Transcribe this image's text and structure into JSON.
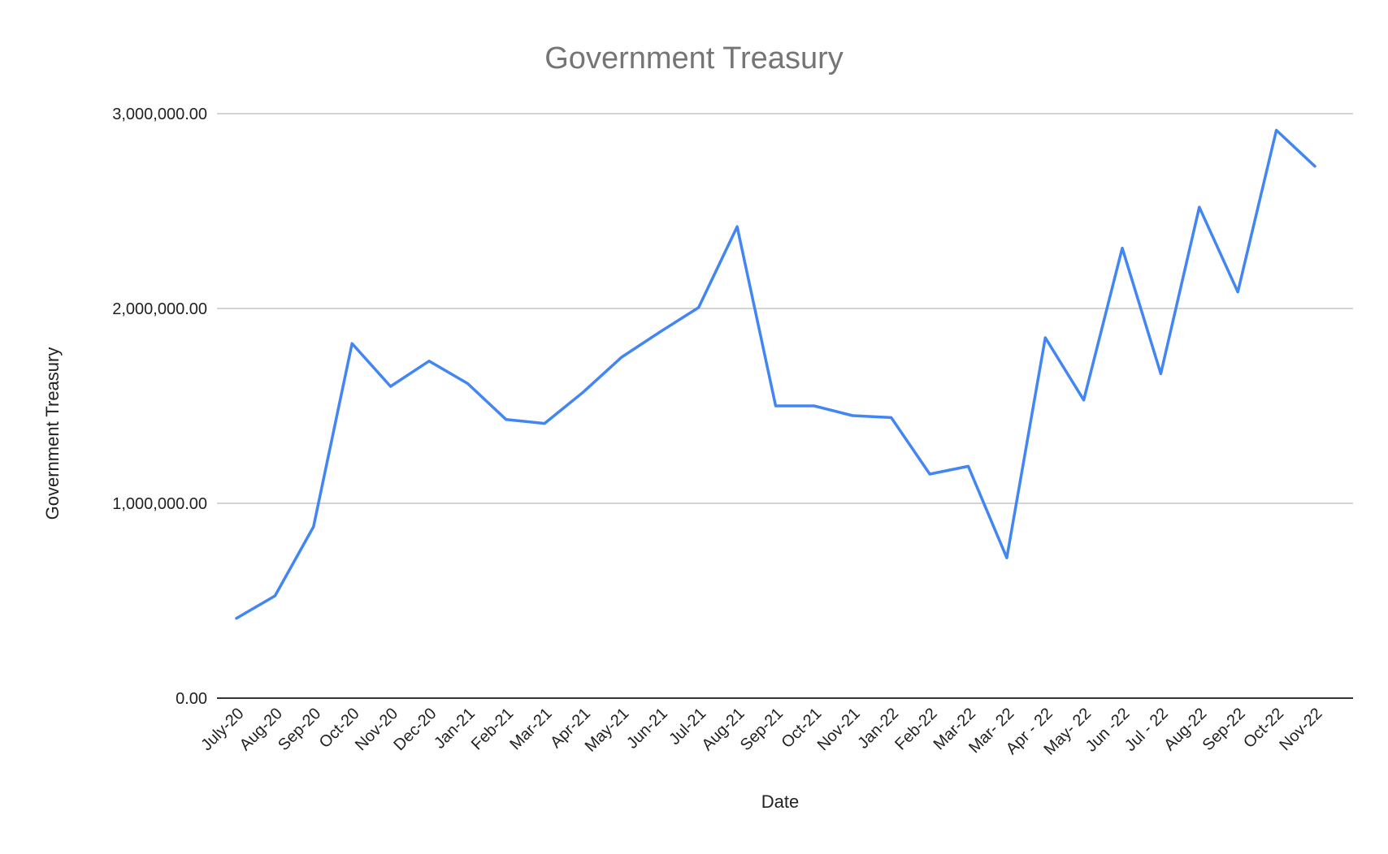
{
  "colors": {
    "series": "#4285f4",
    "title": "#757575",
    "text": "#222222",
    "grid": "#c6c6c6",
    "baseline": "#333333"
  },
  "chart_data": {
    "type": "line",
    "title": "Government Treasury",
    "xlabel": "Date",
    "ylabel": "Government Treasury",
    "ylim": [
      0,
      3000000
    ],
    "yticks": [
      {
        "value": 0,
        "label": "0.00"
      },
      {
        "value": 1000000,
        "label": "1,000,000.00"
      },
      {
        "value": 2000000,
        "label": "2,000,000.00"
      },
      {
        "value": 3000000,
        "label": "3,000,000.00"
      }
    ],
    "grid": true,
    "legend": "none",
    "categories": [
      "July-20",
      "Aug-20",
      "Sep-20",
      "Oct-20",
      "Nov-20",
      "Dec-20",
      "Jan-21",
      "Feb-21",
      "Mar-21",
      "Apr-21",
      "May-21",
      "Jun-21",
      "Jul-21",
      "Aug-21",
      "Sep-21",
      "Oct-21",
      "Nov-21",
      "Jan-22",
      "Feb-22",
      "Mar-22",
      "Mar- 22",
      "Apr - 22",
      "May- 22",
      "Jun -22",
      "Jul - 22",
      "Aug-22",
      "Sep-22",
      "Oct-22",
      "Nov-22"
    ],
    "series": [
      {
        "values": [
          410000,
          525000,
          880000,
          1820000,
          1600000,
          1730000,
          1615000,
          1430000,
          1410000,
          1570000,
          1750000,
          1880000,
          2005000,
          2420000,
          1500000,
          1500000,
          1450000,
          1440000,
          1150000,
          1190000,
          720000,
          1850000,
          1530000,
          2310000,
          1665000,
          2520000,
          2085000,
          2915000,
          2730000
        ]
      }
    ]
  }
}
